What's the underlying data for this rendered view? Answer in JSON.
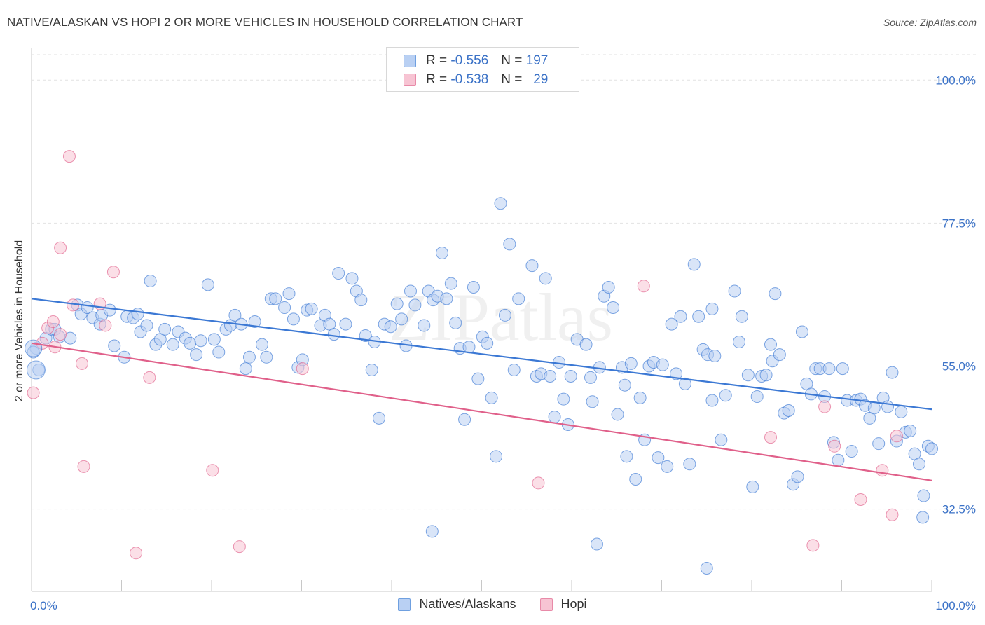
{
  "title": "NATIVE/ALASKAN VS HOPI 2 OR MORE VEHICLES IN HOUSEHOLD CORRELATION CHART",
  "source": "Source: ZipAtlas.com",
  "watermark": "ZIPatlas",
  "legend": {
    "r_label": "R =",
    "n_label": "N =",
    "rows": [
      {
        "r": "-0.556",
        "n": "197",
        "color": "#6fa0e0",
        "fill": "#b9d0f3"
      },
      {
        "r": "-0.538",
        "n": "29",
        "color": "#e88aa8",
        "fill": "#f7c4d3"
      }
    ]
  },
  "bottom_legend": [
    "Natives/Alaskans",
    "Hopi"
  ],
  "chart_data": {
    "type": "scatter",
    "xlabel": "",
    "ylabel": "2 or more Vehicles in Household",
    "xlim": [
      0,
      100
    ],
    "ylim": [
      20,
      104
    ],
    "x_tick_labels": [
      "0.0%",
      "100.0%"
    ],
    "y_ticks": [
      32.5,
      55.0,
      77.5,
      100.0
    ],
    "y_tick_labels": [
      "32.5%",
      "55.0%",
      "77.5%",
      "100.0%"
    ],
    "grid": "horizontal dashed",
    "series": [
      {
        "name": "Natives/Alaskans",
        "color": "#3b78d4",
        "point_fill": "#b9d0f3",
        "trend": {
          "x": [
            0,
            100
          ],
          "y": [
            65.6,
            48.2
          ]
        },
        "points": [
          [
            0.5,
            57.8
          ],
          [
            0.8,
            54.4
          ],
          [
            1.6,
            59.4
          ],
          [
            2.2,
            60.8
          ],
          [
            2.6,
            60.8
          ],
          [
            3.1,
            59.6
          ],
          [
            4.3,
            59.4
          ],
          [
            5.1,
            64.6
          ],
          [
            5.5,
            63.2
          ],
          [
            6.2,
            64.2
          ],
          [
            6.8,
            62.6
          ],
          [
            7.6,
            61.6
          ],
          [
            7.8,
            63.0
          ],
          [
            8.7,
            63.8
          ],
          [
            9.2,
            58.2
          ],
          [
            10.3,
            56.4
          ],
          [
            10.6,
            62.8
          ],
          [
            11.3,
            62.6
          ],
          [
            11.8,
            63.2
          ],
          [
            12.1,
            60.4
          ],
          [
            12.8,
            61.4
          ],
          [
            13.2,
            68.4
          ],
          [
            13.8,
            58.4
          ],
          [
            14.3,
            59.2
          ],
          [
            14.8,
            60.8
          ],
          [
            15.7,
            58.4
          ],
          [
            16.3,
            60.4
          ],
          [
            17.1,
            59.4
          ],
          [
            17.6,
            58.6
          ],
          [
            18.3,
            56.8
          ],
          [
            18.8,
            59.0
          ],
          [
            19.6,
            67.8
          ],
          [
            20.3,
            59.2
          ],
          [
            20.8,
            57.2
          ],
          [
            21.6,
            60.8
          ],
          [
            22.1,
            61.4
          ],
          [
            22.6,
            63.0
          ],
          [
            23.3,
            61.6
          ],
          [
            23.8,
            54.6
          ],
          [
            24.2,
            56.4
          ],
          [
            24.8,
            62.0
          ],
          [
            25.6,
            58.4
          ],
          [
            26.1,
            56.4
          ],
          [
            26.6,
            65.6
          ],
          [
            27.1,
            65.6
          ],
          [
            28.1,
            64.2
          ],
          [
            28.6,
            66.4
          ],
          [
            29.1,
            62.4
          ],
          [
            29.6,
            54.8
          ],
          [
            30.1,
            56.0
          ],
          [
            30.6,
            63.8
          ],
          [
            31.1,
            64.0
          ],
          [
            32.1,
            61.4
          ],
          [
            32.6,
            63.0
          ],
          [
            33.1,
            61.6
          ],
          [
            33.6,
            60.0
          ],
          [
            34.1,
            69.6
          ],
          [
            34.9,
            61.6
          ],
          [
            35.6,
            68.8
          ],
          [
            36.1,
            66.8
          ],
          [
            36.6,
            65.4
          ],
          [
            37.1,
            59.8
          ],
          [
            38.1,
            58.8
          ],
          [
            37.8,
            54.4
          ],
          [
            38.6,
            46.8
          ],
          [
            39.2,
            61.6
          ],
          [
            39.9,
            61.2
          ],
          [
            40.6,
            64.8
          ],
          [
            41.1,
            62.4
          ],
          [
            41.6,
            58.2
          ],
          [
            42.1,
            66.8
          ],
          [
            42.6,
            64.6
          ],
          [
            43.6,
            61.4
          ],
          [
            44.1,
            66.8
          ],
          [
            44.6,
            65.4
          ],
          [
            45.1,
            66.0
          ],
          [
            45.6,
            72.8
          ],
          [
            46.1,
            65.6
          ],
          [
            46.6,
            68.0
          ],
          [
            47.1,
            61.8
          ],
          [
            47.6,
            57.8
          ],
          [
            48.1,
            46.6
          ],
          [
            48.6,
            58.0
          ],
          [
            49.1,
            67.4
          ],
          [
            49.6,
            53.0
          ],
          [
            50.1,
            59.6
          ],
          [
            50.6,
            58.6
          ],
          [
            51.1,
            50.0
          ],
          [
            51.6,
            40.8
          ],
          [
            52.1,
            80.6
          ],
          [
            52.6,
            63.0
          ],
          [
            53.1,
            74.2
          ],
          [
            53.6,
            54.4
          ],
          [
            54.1,
            65.6
          ],
          [
            55.6,
            70.8
          ],
          [
            56.1,
            53.4
          ],
          [
            56.6,
            53.8
          ],
          [
            57.1,
            68.8
          ],
          [
            57.6,
            53.4
          ],
          [
            58.1,
            47.0
          ],
          [
            58.6,
            55.6
          ],
          [
            59.1,
            49.8
          ],
          [
            59.6,
            45.8
          ],
          [
            59.9,
            53.4
          ],
          [
            60.6,
            59.2
          ],
          [
            61.6,
            58.4
          ],
          [
            62.3,
            49.4
          ],
          [
            62.1,
            53.2
          ],
          [
            63.1,
            54.8
          ],
          [
            63.6,
            66.0
          ],
          [
            64.1,
            67.4
          ],
          [
            64.6,
            64.2
          ],
          [
            65.1,
            47.4
          ],
          [
            65.6,
            54.8
          ],
          [
            66.1,
            40.8
          ],
          [
            65.9,
            52.0
          ],
          [
            66.6,
            55.4
          ],
          [
            67.1,
            37.2
          ],
          [
            67.6,
            50.0
          ],
          [
            68.1,
            43.4
          ],
          [
            68.6,
            55.0
          ],
          [
            69.1,
            55.6
          ],
          [
            69.6,
            40.6
          ],
          [
            70.1,
            55.2
          ],
          [
            70.6,
            39.2
          ],
          [
            71.1,
            61.6
          ],
          [
            71.6,
            53.8
          ],
          [
            72.1,
            62.8
          ],
          [
            72.6,
            52.2
          ],
          [
            73.1,
            39.6
          ],
          [
            73.6,
            71.0
          ],
          [
            74.1,
            62.8
          ],
          [
            74.6,
            57.6
          ],
          [
            75.1,
            56.8
          ],
          [
            75.6,
            49.6
          ],
          [
            75.9,
            56.6
          ],
          [
            75.6,
            64.0
          ],
          [
            76.6,
            43.4
          ],
          [
            77.1,
            50.4
          ],
          [
            78.1,
            66.8
          ],
          [
            78.6,
            58.8
          ],
          [
            78.9,
            62.8
          ],
          [
            79.6,
            53.6
          ],
          [
            80.1,
            36.0
          ],
          [
            80.6,
            50.2
          ],
          [
            81.1,
            53.4
          ],
          [
            81.6,
            53.6
          ],
          [
            82.1,
            58.4
          ],
          [
            82.3,
            55.8
          ],
          [
            82.6,
            66.4
          ],
          [
            83.1,
            56.8
          ],
          [
            83.6,
            47.6
          ],
          [
            84.1,
            48.0
          ],
          [
            84.6,
            36.4
          ],
          [
            85.1,
            37.6
          ],
          [
            85.6,
            60.4
          ],
          [
            86.1,
            52.2
          ],
          [
            86.6,
            50.6
          ],
          [
            87.1,
            54.6
          ],
          [
            87.6,
            54.6
          ],
          [
            88.1,
            50.2
          ],
          [
            88.6,
            54.6
          ],
          [
            89.1,
            43.0
          ],
          [
            89.6,
            40.2
          ],
          [
            90.1,
            54.6
          ],
          [
            90.6,
            49.6
          ],
          [
            91.1,
            41.6
          ],
          [
            91.6,
            49.6
          ],
          [
            92.1,
            49.8
          ],
          [
            92.6,
            48.8
          ],
          [
            93.1,
            46.8
          ],
          [
            93.6,
            48.4
          ],
          [
            94.1,
            42.8
          ],
          [
            94.6,
            50.0
          ],
          [
            95.1,
            48.6
          ],
          [
            95.6,
            54.0
          ],
          [
            96.1,
            43.2
          ],
          [
            96.6,
            47.8
          ],
          [
            97.1,
            44.6
          ],
          [
            97.6,
            44.8
          ],
          [
            98.1,
            41.2
          ],
          [
            98.6,
            39.6
          ],
          [
            99.1,
            34.6
          ],
          [
            99.6,
            42.4
          ],
          [
            100.0,
            42.0
          ],
          [
            99.0,
            31.2
          ],
          [
            44.5,
            29.0
          ],
          [
            62.8,
            27.0
          ],
          [
            75.0,
            23.2
          ],
          [
            0.2,
            57.2
          ]
        ]
      },
      {
        "name": "Hopi",
        "color": "#e0608a",
        "point_fill": "#f7c4d3",
        "trend": {
          "x": [
            0,
            100
          ],
          "y": [
            58.6,
            37.0
          ]
        },
        "points": [
          [
            0.2,
            50.8
          ],
          [
            1.2,
            58.6
          ],
          [
            1.8,
            61.0
          ],
          [
            2.4,
            62.0
          ],
          [
            2.6,
            58.0
          ],
          [
            3.2,
            60.0
          ],
          [
            3.2,
            73.6
          ],
          [
            4.2,
            88.0
          ],
          [
            4.6,
            64.6
          ],
          [
            5.6,
            55.4
          ],
          [
            5.8,
            39.2
          ],
          [
            7.6,
            64.8
          ],
          [
            8.2,
            61.4
          ],
          [
            9.1,
            69.8
          ],
          [
            11.6,
            25.6
          ],
          [
            13.1,
            53.2
          ],
          [
            20.1,
            38.6
          ],
          [
            23.1,
            26.6
          ],
          [
            30.1,
            54.6
          ],
          [
            56.3,
            36.6
          ],
          [
            68.0,
            67.6
          ],
          [
            82.1,
            43.8
          ],
          [
            86.8,
            26.8
          ],
          [
            88.1,
            48.6
          ],
          [
            89.2,
            42.4
          ],
          [
            92.1,
            34.0
          ],
          [
            94.5,
            38.6
          ],
          [
            95.6,
            31.6
          ],
          [
            96.1,
            44.0
          ]
        ]
      }
    ]
  }
}
